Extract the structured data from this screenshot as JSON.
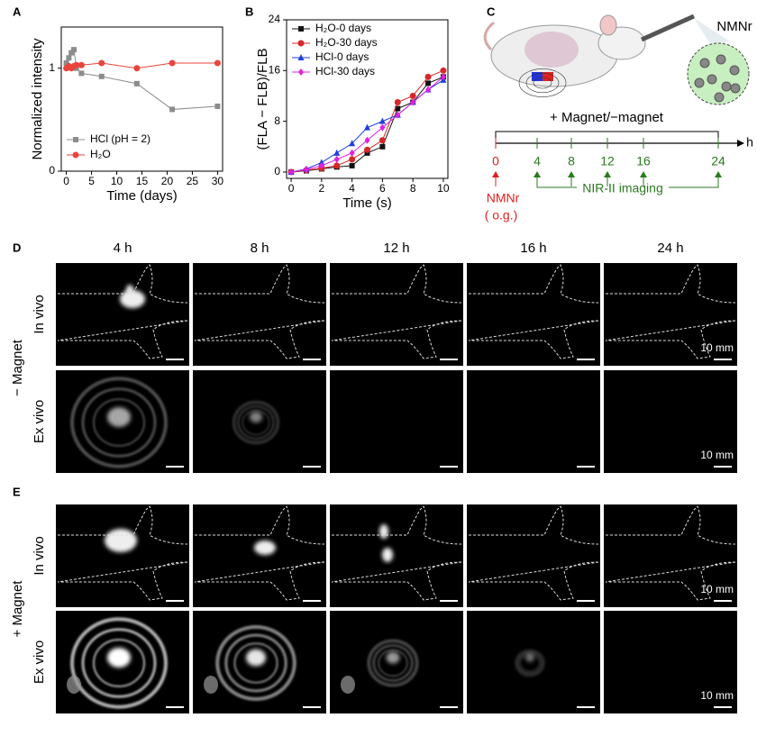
{
  "panel_labels": [
    "A",
    "B",
    "C",
    "D",
    "E"
  ],
  "chart_data": [
    {
      "type": "line",
      "x_label": "Time (days)",
      "y_label": "Normalized intensity",
      "xlim": [
        -1,
        31
      ],
      "ylim": [
        0,
        1.4
      ],
      "xticks": [
        0,
        5,
        10,
        15,
        20,
        25,
        30
      ],
      "yticks": [
        0,
        1
      ],
      "legend": "lower left",
      "x": [
        0,
        0.5,
        1,
        1.5,
        2,
        3,
        7,
        14,
        21,
        30
      ],
      "series": [
        {
          "name": "HCl (pH = 2)",
          "color": "#8c8c8c",
          "marker": "square",
          "values": [
            1.05,
            1.1,
            1.15,
            1.18,
            1.0,
            0.95,
            0.92,
            0.85,
            0.6,
            0.63
          ]
        },
        {
          "name": "H₂O",
          "color": "#e8453c",
          "marker": "circle",
          "values": [
            1.0,
            1.02,
            1.0,
            1.02,
            1.03,
            1.03,
            1.05,
            1.0,
            1.05,
            1.05
          ]
        }
      ]
    },
    {
      "type": "line",
      "x_label": "Time (s)",
      "y_label": "(FLA − FLB)/FLB",
      "xlim": [
        -0.3,
        10.3
      ],
      "ylim": [
        -1,
        24
      ],
      "xticks": [
        0,
        2,
        4,
        6,
        8,
        10
      ],
      "yticks": [
        0,
        8,
        16,
        24
      ],
      "legend": "upper left",
      "x": [
        0,
        1,
        2,
        3,
        4,
        5,
        6,
        7,
        8,
        9,
        10
      ],
      "series": [
        {
          "name": "H₂O-0 days",
          "color": "#111111",
          "marker": "square",
          "values": [
            0,
            0.2,
            0.5,
            0.8,
            1,
            3,
            4,
            10,
            11,
            14,
            15
          ]
        },
        {
          "name": "H₂O-30 days",
          "color": "#d62728",
          "marker": "circle",
          "values": [
            0,
            0.3,
            0.6,
            1,
            2,
            3.5,
            5,
            11,
            12,
            15,
            16
          ]
        },
        {
          "name": "HCl-0 days",
          "color": "#1f3fe0",
          "marker": "triangle",
          "values": [
            0,
            0.5,
            1.5,
            3,
            4.5,
            7,
            8,
            9,
            11,
            13,
            14.5
          ]
        },
        {
          "name": "HCl-30 days",
          "color": "#e020e0",
          "marker": "diamond",
          "values": [
            0,
            0.4,
            1,
            2,
            3,
            5,
            7,
            9,
            11,
            13,
            15
          ]
        }
      ]
    }
  ],
  "diagram": {
    "drug_label": "NMNr",
    "condition": "+ Magnet/−magnet",
    "timeline": {
      "ticks": [
        "0",
        "4",
        "8",
        "12",
        "16",
        "24"
      ],
      "unit": "h",
      "start_label": "NMNr",
      "route": "( o.g.)",
      "imaging_label": "NIR-II imaging"
    }
  },
  "imaging": {
    "columns": [
      "4 h",
      "8 h",
      "12 h",
      "16 h",
      "24 h"
    ],
    "groups": [
      {
        "name": "− Magnet",
        "rows": [
          "In vivo",
          "Ex vivo"
        ]
      },
      {
        "name": "+ Magnet",
        "rows": [
          "In vivo",
          "Ex vivo"
        ]
      }
    ],
    "scale_bar": "10 mm"
  }
}
